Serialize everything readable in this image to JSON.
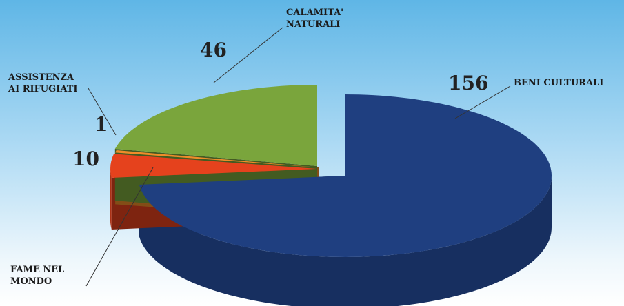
{
  "chart_data": {
    "type": "pie3d",
    "categories": [
      "BENI CULTURALI",
      "FAME NEL\nMONDO",
      "ASSISTENZA\nAI RIFUGIATI",
      "CALAMITA'\nNATURALI"
    ],
    "values": [
      156,
      10,
      1,
      46
    ],
    "colors": [
      "#1f3f80",
      "#e5421d",
      "#ef8c2a",
      "#7aa53c"
    ]
  }
}
